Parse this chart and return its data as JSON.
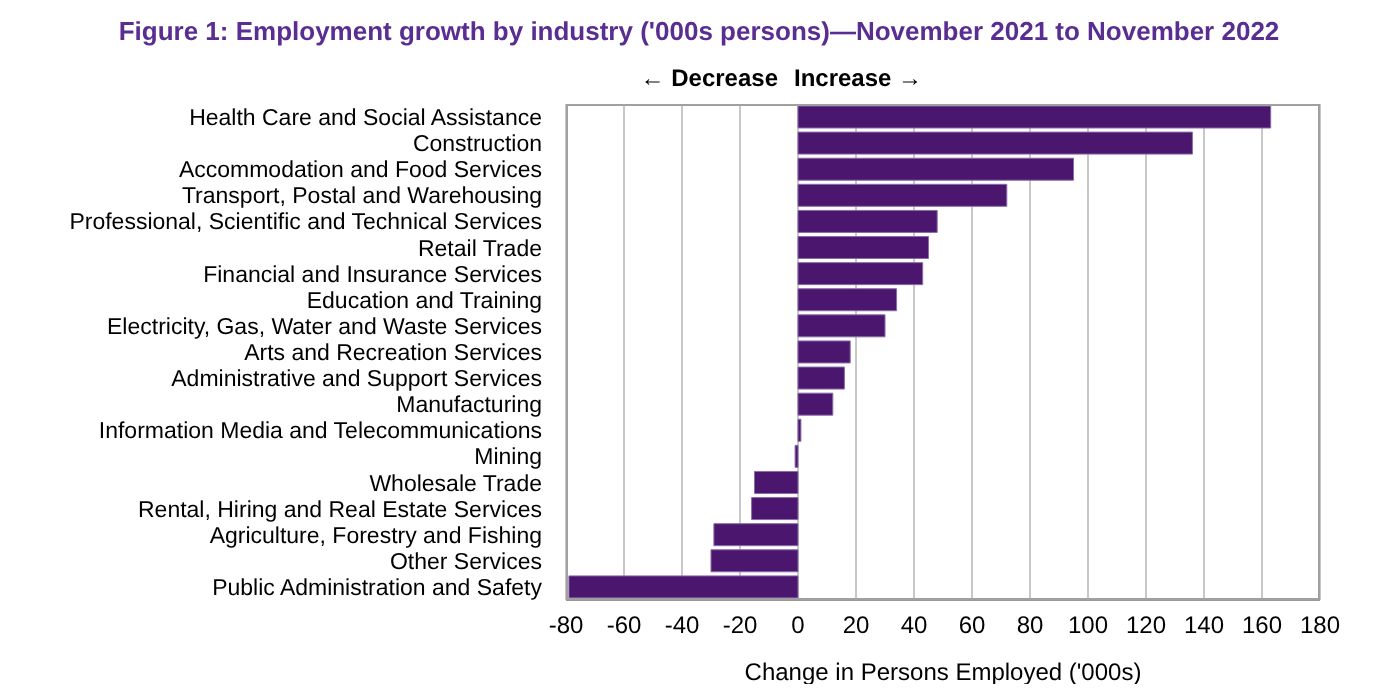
{
  "chart_data": {
    "type": "bar",
    "orientation": "horizontal",
    "title": "Figure 1: Employment growth by industry ('000s persons)—November 2021 to November 2022",
    "xlabel": "Change in Persons Employed ('000s)",
    "categories": [
      "Health Care and Social Assistance",
      "Construction",
      "Accommodation and Food Services",
      "Transport, Postal and Warehousing",
      "Professional, Scientific and Technical Services",
      "Retail Trade",
      "Financial and Insurance Services",
      "Education and Training",
      "Electricity, Gas, Water and Waste Services",
      "Arts and Recreation Services",
      "Administrative and Support Services",
      "Manufacturing",
      "Information Media and Telecommunications",
      "Mining",
      "Wholesale Trade",
      "Rental, Hiring and Real Estate Services",
      "Agriculture, Forestry and Fishing",
      "Other Services",
      "Public Administration and Safety"
    ],
    "values": [
      163,
      136,
      95,
      72,
      48,
      45,
      43,
      34,
      30,
      18,
      16,
      12,
      1,
      -1,
      -15,
      -16,
      -29,
      -30,
      -79
    ],
    "color": "#4b166e",
    "xlim": [
      -80,
      180
    ],
    "xticks": [
      -80,
      -60,
      -40,
      -20,
      0,
      20,
      40,
      60,
      80,
      100,
      120,
      140,
      160,
      180
    ],
    "grid": "x",
    "annotations": [
      "← Decrease",
      "Increase →"
    ]
  }
}
